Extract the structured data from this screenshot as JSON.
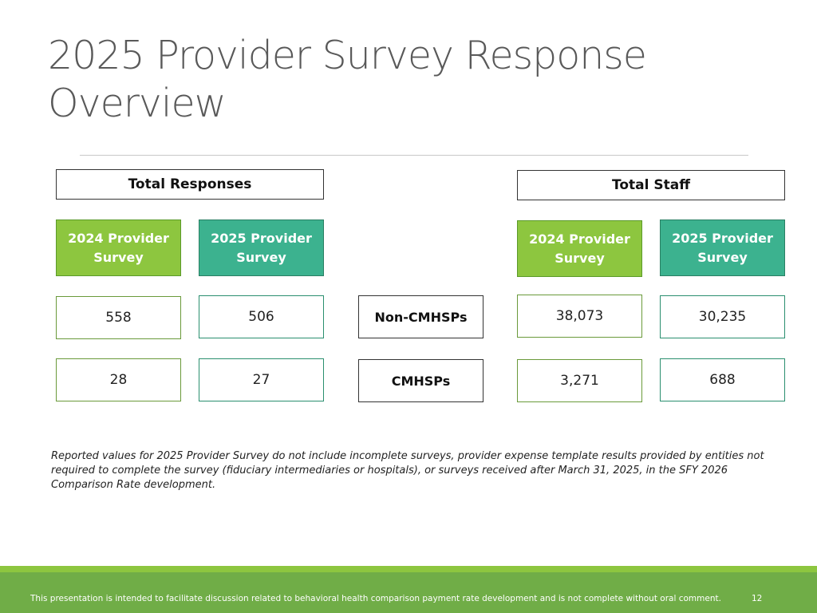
{
  "slide": {
    "title_line1": "2025 Provider Survey Response",
    "title_line2": "Overview"
  },
  "responses": {
    "header": "Total Responses",
    "survey_2024_line1": "2024 Provider",
    "survey_2024_line2": "Survey",
    "survey_2025_line1": "2025 Provider",
    "survey_2025_line2": "Survey",
    "non_cmhsps_2024": "558",
    "non_cmhsps_2025": "506",
    "cmhsps_2024": "28",
    "cmhsps_2025": "27"
  },
  "categories": {
    "non_cmhsps": "Non-CMHSPs",
    "cmhsps": "CMHSPs"
  },
  "staff": {
    "header": "Total Staff",
    "survey_2024_line1": "2024 Provider",
    "survey_2024_line2": "Survey",
    "survey_2025_line1": "2025 Provider",
    "survey_2025_line2": "Survey",
    "non_cmhsps_2024": "38,073",
    "non_cmhsps_2025": "30,235",
    "cmhsps_2024": "3,271",
    "cmhsps_2025": "688"
  },
  "note": "Reported values for 2025 Provider Survey do not include incomplete surveys, provider expense template results provided by entities not required to complete the survey (fiduciary intermediaries or hospitals), or surveys received after March 31, 2025, in the SFY 2026 Comparison Rate development.",
  "footer": {
    "text": "This presentation is intended to facilitate discussion related to behavioral health comparison payment rate development and is not complete without oral comment.",
    "page_number": "12"
  },
  "colors": {
    "survey_2024": "#8dc63f",
    "survey_2025": "#3cb28f",
    "footer_bar": "#70ad47"
  }
}
